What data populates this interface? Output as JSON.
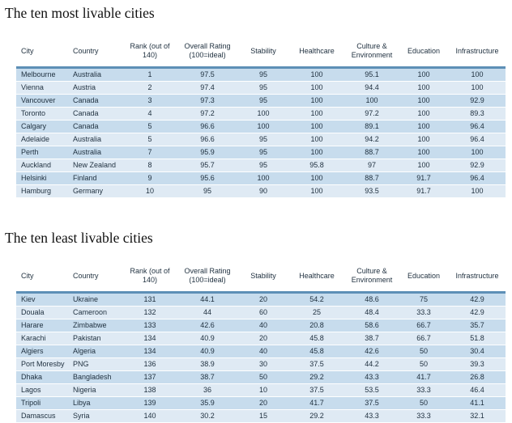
{
  "top_title": "The ten most livable cities",
  "bottom_title": "The ten least livable cities",
  "headers": [
    "City",
    "Country",
    "Rank (out of\n140)",
    "Overall Rating\n(100=ideal)",
    "Stability",
    "Healthcare",
    "Culture &\nEnvironment",
    "Education",
    "Infrastructure"
  ],
  "most_livable": [
    [
      "Melbourne",
      "Australia",
      "1",
      "97.5",
      "95",
      "100",
      "95.1",
      "100",
      "100"
    ],
    [
      "Vienna",
      "Austria",
      "2",
      "97.4",
      "95",
      "100",
      "94.4",
      "100",
      "100"
    ],
    [
      "Vancouver",
      "Canada",
      "3",
      "97.3",
      "95",
      "100",
      "100",
      "100",
      "92.9"
    ],
    [
      "Toronto",
      "Canada",
      "4",
      "97.2",
      "100",
      "100",
      "97.2",
      "100",
      "89.3"
    ],
    [
      "Calgary",
      "Canada",
      "5",
      "96.6",
      "100",
      "100",
      "89.1",
      "100",
      "96.4"
    ],
    [
      "Adelaide",
      "Australia",
      "5",
      "96.6",
      "95",
      "100",
      "94.2",
      "100",
      "96.4"
    ],
    [
      "Perth",
      "Australia",
      "7",
      "95.9",
      "95",
      "100",
      "88.7",
      "100",
      "100"
    ],
    [
      "Auckland",
      "New Zealand",
      "8",
      "95.7",
      "95",
      "95.8",
      "97",
      "100",
      "92.9"
    ],
    [
      "Helsinki",
      "Finland",
      "9",
      "95.6",
      "100",
      "100",
      "88.7",
      "91.7",
      "96.4"
    ],
    [
      "Hamburg",
      "Germany",
      "10",
      "95",
      "90",
      "100",
      "93.5",
      "91.7",
      "100"
    ]
  ],
  "least_livable": [
    [
      "Kiev",
      "Ukraine",
      "131",
      "44.1",
      "20",
      "54.2",
      "48.6",
      "75",
      "42.9"
    ],
    [
      "Douala",
      "Cameroon",
      "132",
      "44",
      "60",
      "25",
      "48.4",
      "33.3",
      "42.9"
    ],
    [
      "Harare",
      "Zimbabwe",
      "133",
      "42.6",
      "40",
      "20.8",
      "58.6",
      "66.7",
      "35.7"
    ],
    [
      "Karachi",
      "Pakistan",
      "134",
      "40.9",
      "20",
      "45.8",
      "38.7",
      "66.7",
      "51.8"
    ],
    [
      "Algiers",
      "Algeria",
      "134",
      "40.9",
      "40",
      "45.8",
      "42.6",
      "50",
      "30.4"
    ],
    [
      "Port Moresby",
      "PNG",
      "136",
      "38.9",
      "30",
      "37.5",
      "44.2",
      "50",
      "39.3"
    ],
    [
      "Dhaka",
      "Bangladesh",
      "137",
      "38.7",
      "50",
      "29.2",
      "43.3",
      "41.7",
      "26.8"
    ],
    [
      "Lagos",
      "Nigeria",
      "138",
      "36",
      "10",
      "37.5",
      "53.5",
      "33.3",
      "46.4"
    ],
    [
      "Tripoli",
      "Libya",
      "139",
      "35.9",
      "20",
      "41.7",
      "37.5",
      "50",
      "41.1"
    ],
    [
      "Damascus",
      "Syria",
      "140",
      "30.2",
      "15",
      "29.2",
      "43.3",
      "33.3",
      "32.1"
    ]
  ],
  "colors": {
    "row_dark": "#c7dced",
    "row_light": "#dfeaf4",
    "rule": "#5d8fb6",
    "text": "#1e2f3e"
  }
}
